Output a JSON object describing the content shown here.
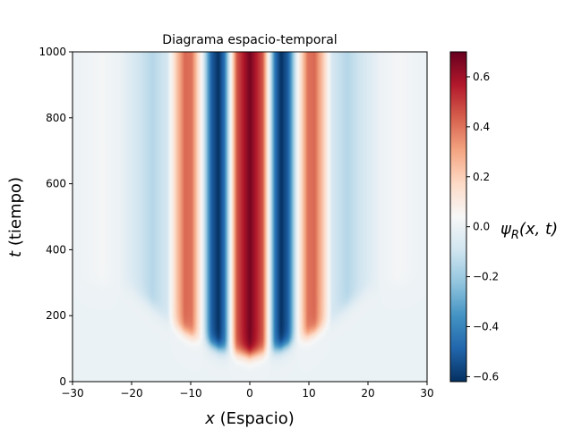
{
  "chart_data": {
    "type": "heatmap",
    "title": "Diagrama espacio-temporal",
    "xlabel_var": "x",
    "xlabel_text": " (Espacio)",
    "ylabel_var": "t",
    "ylabel_text": " (tiempo)",
    "colorbar_label_main": "ψ",
    "colorbar_label_sub": "R",
    "colorbar_label_rest": "(x, t)",
    "xlim": [
      -30,
      30
    ],
    "ylim": [
      0,
      1000
    ],
    "x_ticks": [
      -30,
      -20,
      -10,
      0,
      10,
      20,
      30
    ],
    "y_ticks": [
      0,
      200,
      400,
      600,
      800,
      1000
    ],
    "x_tick_labels": [
      "−30",
      "−20",
      "−10",
      "0",
      "10",
      "20",
      "30"
    ],
    "y_tick_labels": [
      "0",
      "200",
      "400",
      "600",
      "800",
      "1000"
    ],
    "colorbar_range": [
      -0.62,
      0.7
    ],
    "colorbar_ticks": [
      -0.6,
      -0.4,
      -0.2,
      0.0,
      0.2,
      0.4,
      0.6
    ],
    "colorbar_tick_labels": [
      "−0.6",
      "−0.4",
      "−0.2",
      "0.0",
      "0.2",
      "0.4",
      "0.6"
    ],
    "colormap": "RdBu_r",
    "colormap_stops": [
      "#053061",
      "#2166ac",
      "#4393c3",
      "#92c5de",
      "#d1e5f0",
      "#f7f7f7",
      "#fddbc7",
      "#f4a582",
      "#d6604d",
      "#b2182b",
      "#67001f"
    ],
    "stationary_profile": {
      "x": [
        0,
        2.2,
        3.3,
        4.3,
        5.3,
        6.5,
        8.0,
        9.8,
        11.0,
        12.5,
        14.0,
        16.5,
        19.0,
        22.0,
        25.0,
        28.0,
        30.0
      ],
      "psi": [
        0.68,
        0.45,
        0.0,
        -0.45,
        -0.62,
        -0.5,
        0.0,
        0.4,
        0.42,
        0.2,
        -0.08,
        -0.15,
        -0.08,
        0.0,
        0.03,
        0.01,
        0.0
      ]
    },
    "wavefront": {
      "x": [
        0,
        3,
        5,
        7,
        10,
        13,
        16,
        20,
        30
      ],
      "t": [
        80,
        90,
        100,
        115,
        140,
        170,
        220,
        280,
        300
      ]
    }
  }
}
